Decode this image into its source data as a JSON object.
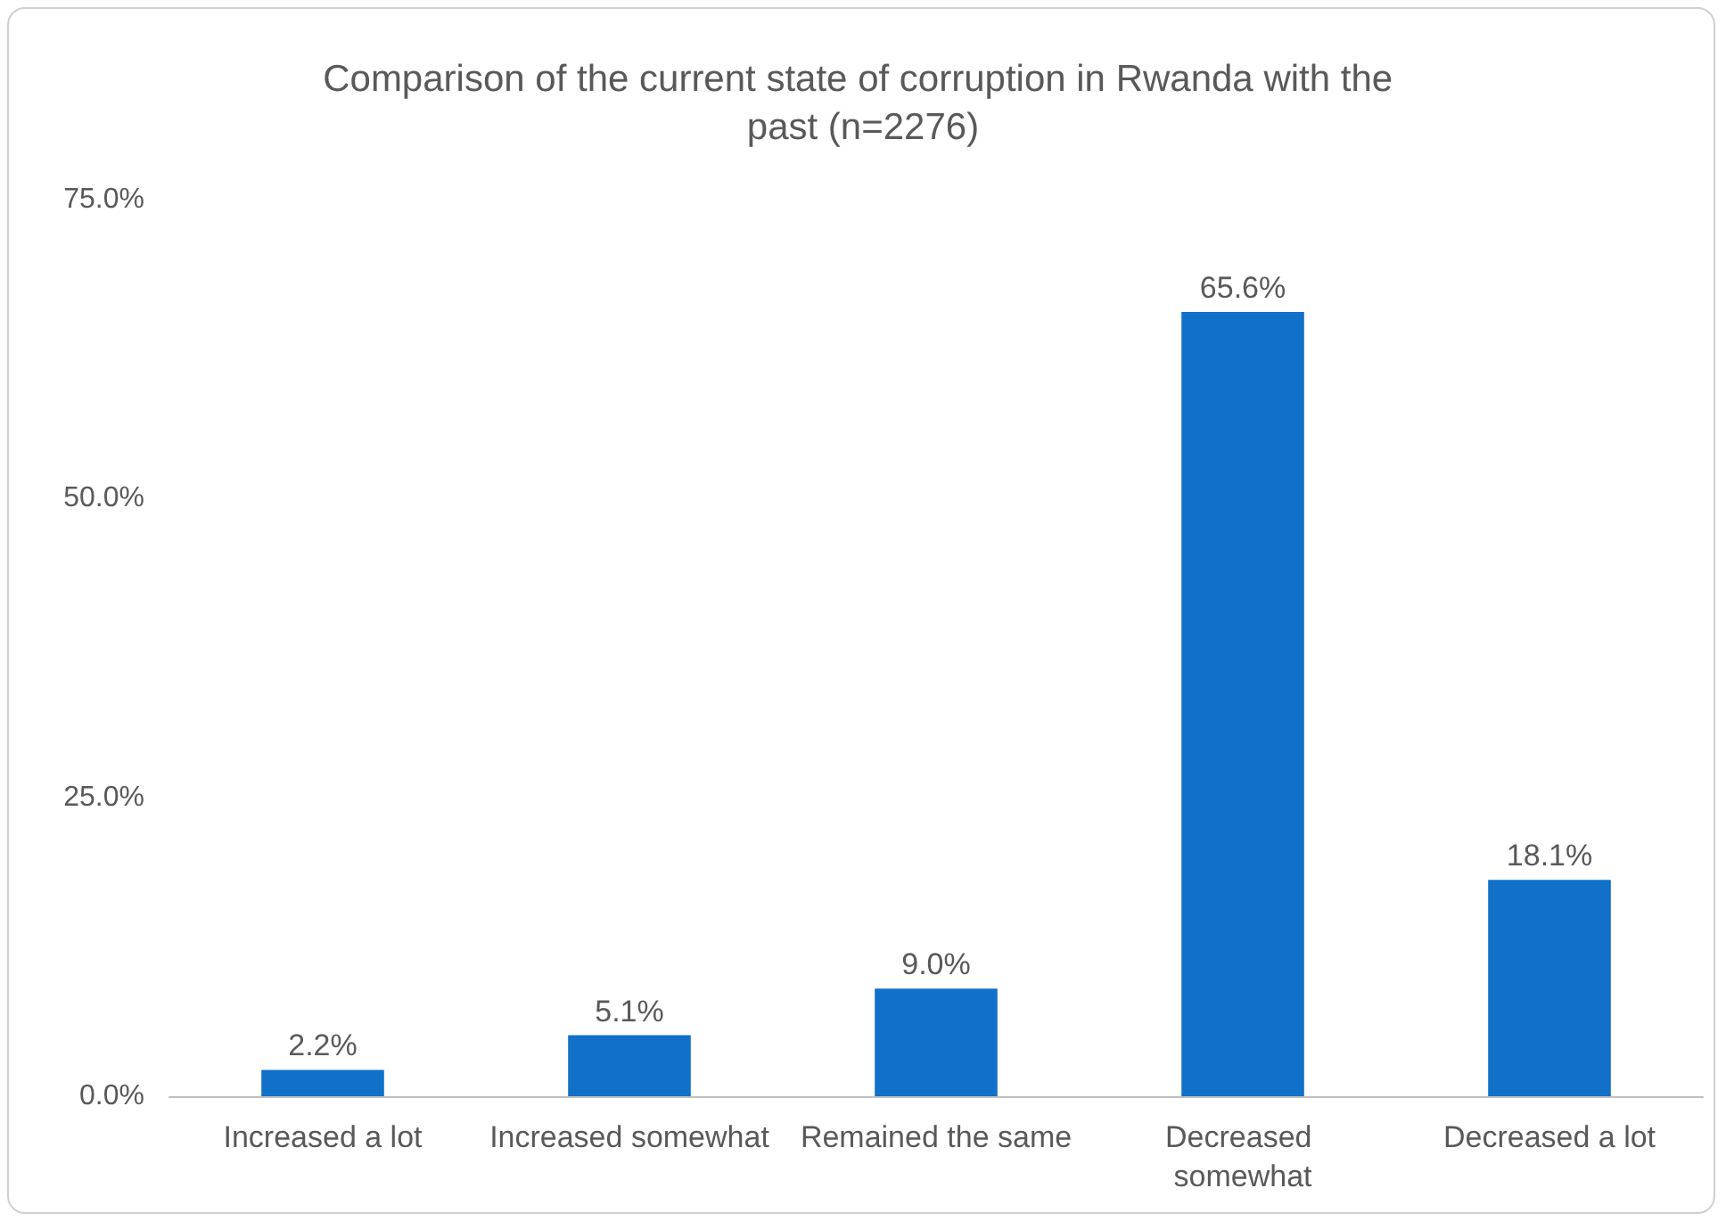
{
  "chart_data": {
    "type": "bar",
    "title": "Comparison of the current state of corruption in Rwanda with the past (n=2276)",
    "categories": [
      "Increased a lot",
      "Increased somewhat",
      "Remained the same",
      "Decreased somewhat",
      "Decreased a lot"
    ],
    "values": [
      2.2,
      5.1,
      9.0,
      65.6,
      18.1
    ],
    "value_labels": [
      "2.2%",
      "5.1%",
      "9.0%",
      "65.6%",
      "18.1%"
    ],
    "color": "#1170c8",
    "ylim": [
      0,
      75
    ],
    "yticks": [
      {
        "value": 0,
        "label": "0.0%"
      },
      {
        "value": 25,
        "label": "25.0%"
      },
      {
        "value": 50,
        "label": "50.0%"
      },
      {
        "value": 75,
        "label": "75.0%"
      }
    ],
    "grid": false
  }
}
